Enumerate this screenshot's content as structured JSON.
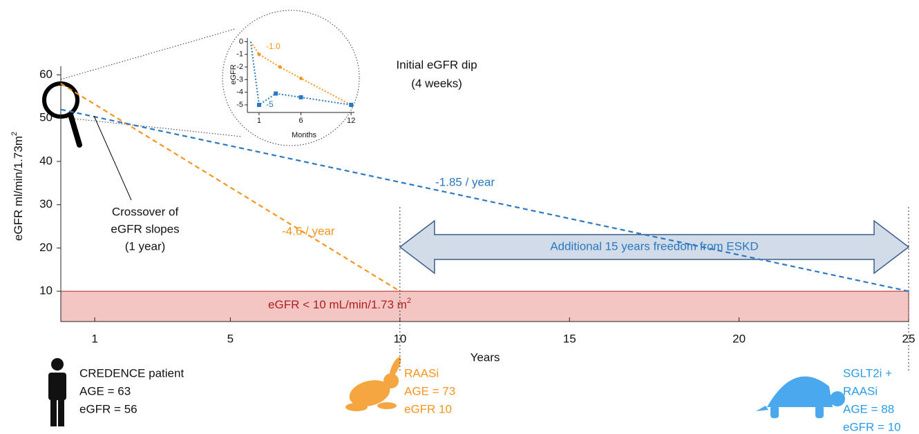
{
  "chart_data": [
    {
      "type": "line",
      "x_label": "Years",
      "y_label": {
        "text": "eGFR ml/min/1.73m",
        "sup": "2"
      },
      "xlim": [
        0,
        25
      ],
      "ylim": [
        3,
        62
      ],
      "xticks": [
        1,
        5,
        10,
        15,
        20,
        25
      ],
      "yticks": [
        10,
        20,
        30,
        40,
        50,
        60
      ],
      "series": [
        {
          "color": "#f7941d",
          "x": [
            0,
            10
          ],
          "values": [
            58,
            10
          ]
        },
        {
          "color": "#2b78c2",
          "x": [
            0,
            25
          ],
          "values": [
            52,
            10
          ]
        }
      ],
      "threshold": {
        "value": 10,
        "label": "eGFR < 10 mL/min/1.73 m",
        "sup": "2",
        "color": "#f3c6c4",
        "text_color": "#b01e1e"
      },
      "markers_x": [
        10,
        25
      ],
      "arrow_label": "Additional 15 years freedom from ESKD",
      "slope_labels": [
        "-1.85 / year",
        "-4.6 / year"
      ],
      "crossover_note": [
        "Crossover of",
        "eGFR slopes",
        "(1 year)"
      ],
      "dip_note": [
        "Initial eGFR dip",
        "(4 weeks)"
      ],
      "captions": [
        {
          "lines": [
            "CREDENCE patient",
            "AGE = 63",
            "eGFR = 56"
          ],
          "color": "#111111"
        },
        {
          "lines": [
            "RAASi",
            "AGE = 73",
            "eGFR 10"
          ],
          "color": "#f7941d"
        },
        {
          "lines": [
            "SGLT2i  +",
            "RAASi",
            "AGE = 88",
            "eGFR = 10"
          ],
          "color": "#2b9be8"
        }
      ]
    },
    {
      "type": "line",
      "x_label": "Months",
      "y_label": "eGFR",
      "xlim": [
        -0.4,
        12.4
      ],
      "ylim": [
        -5.6,
        0.3
      ],
      "xticks": [
        1,
        6,
        12
      ],
      "yticks": [
        0,
        -1,
        -2,
        -3,
        -4,
        -5
      ],
      "series": [
        {
          "color": "#f7941d",
          "x": [
            0,
            1,
            3.5,
            6,
            12
          ],
          "values": [
            0,
            -1,
            -2,
            -2.9,
            -5
          ],
          "value_labels": [
            null,
            "-1.0",
            null,
            null,
            null
          ]
        },
        {
          "color": "#2b78c2",
          "x": [
            0,
            1,
            3,
            6,
            12
          ],
          "values": [
            0,
            -5,
            -4.1,
            -4.4,
            -5
          ],
          "value_labels": [
            null,
            "-5",
            null,
            null,
            null
          ]
        }
      ]
    }
  ]
}
